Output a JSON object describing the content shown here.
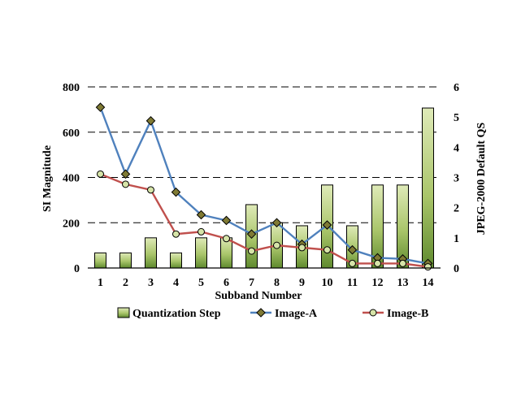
{
  "chart_data": {
    "type": "bar",
    "title": "",
    "xlabel": "Subband Number",
    "ylabel": "SI Magnitude",
    "y2label": "JPEG-2000 Default QS",
    "categories": [
      "1",
      "2",
      "3",
      "4",
      "5",
      "6",
      "7",
      "8",
      "9",
      "10",
      "11",
      "12",
      "13",
      "14"
    ],
    "ylim": [
      0,
      800
    ],
    "y2lim": [
      0,
      6
    ],
    "yticks": [
      "0",
      "200",
      "400",
      "600",
      "800"
    ],
    "y2ticks": [
      "0",
      "1",
      "2",
      "3",
      "4",
      "5",
      "6"
    ],
    "grid": "horizontal-dashed",
    "legend_position": "bottom",
    "series": [
      {
        "name": "Quantization Step",
        "kind": "bar",
        "axis": "right",
        "values": [
          0.5,
          0.5,
          1.0,
          0.5,
          1.0,
          1.0,
          2.1,
          1.5,
          1.4,
          2.75,
          1.4,
          2.75,
          2.75,
          5.3
        ]
      },
      {
        "name": "Image-A",
        "kind": "line",
        "axis": "left",
        "color": "#4f81bd",
        "marker_color": "#7f7a34",
        "values": [
          710,
          415,
          650,
          335,
          235,
          210,
          150,
          200,
          105,
          190,
          80,
          45,
          40,
          20
        ]
      },
      {
        "name": "Image-B",
        "kind": "line",
        "axis": "left",
        "color": "#c0504d",
        "marker_color": "#d6e4a8",
        "values": [
          415,
          370,
          345,
          150,
          160,
          130,
          75,
          100,
          90,
          80,
          20,
          20,
          20,
          5
        ]
      }
    ]
  }
}
